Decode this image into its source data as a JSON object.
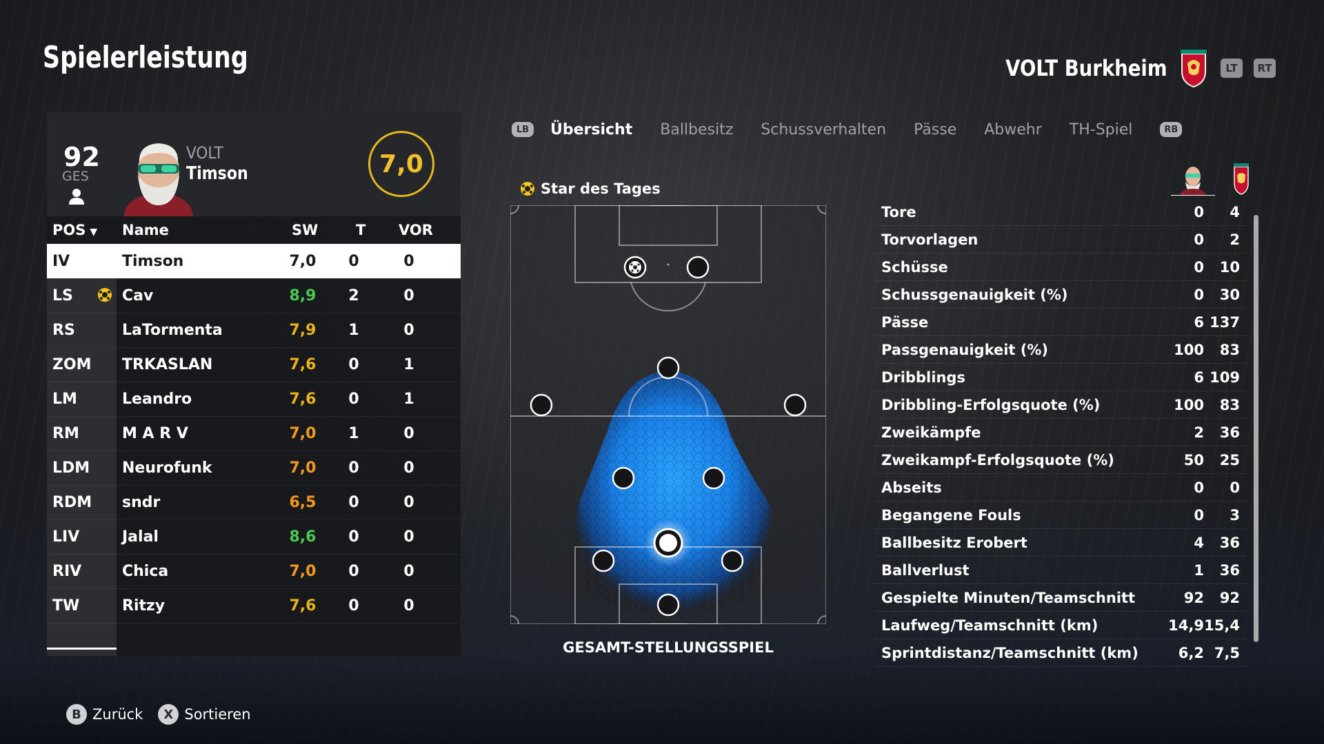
{
  "page_title": "Spielerleistung",
  "team_header": {
    "name": "VOLT Burkheim",
    "lt_label": "LT",
    "rt_label": "RT"
  },
  "player_card": {
    "overall": "92",
    "overall_label": "GES",
    "team": "VOLT",
    "name": "Timson",
    "rating": "7,0"
  },
  "table": {
    "headers": {
      "pos": "POS",
      "name": "Name",
      "sw": "SW",
      "t": "T",
      "vor": "VOR"
    },
    "rows": [
      {
        "pos": "IV",
        "name": "Timson",
        "sw": "7,0",
        "t": "0",
        "vor": "0"
      },
      {
        "pos": "LS",
        "name": "Cav",
        "sw": "8,9",
        "t": "2",
        "vor": "0"
      },
      {
        "pos": "RS",
        "name": "LaTormenta",
        "sw": "7,9",
        "t": "1",
        "vor": "0"
      },
      {
        "pos": "ZOM",
        "name": "TRKASLAN",
        "sw": "7,6",
        "t": "0",
        "vor": "1"
      },
      {
        "pos": "LM",
        "name": "Leandro",
        "sw": "7,6",
        "t": "0",
        "vor": "1"
      },
      {
        "pos": "RM",
        "name": "M A R V",
        "sw": "7,0",
        "t": "1",
        "vor": "0"
      },
      {
        "pos": "LDM",
        "name": "Neurofunk",
        "sw": "7,0",
        "t": "0",
        "vor": "0"
      },
      {
        "pos": "RDM",
        "name": "sndr",
        "sw": "6,5",
        "t": "0",
        "vor": "0"
      },
      {
        "pos": "LIV",
        "name": "Jalal",
        "sw": "8,6",
        "t": "0",
        "vor": "0"
      },
      {
        "pos": "RIV",
        "name": "Chica",
        "sw": "7,0",
        "t": "0",
        "vor": "0"
      },
      {
        "pos": "TW",
        "name": "Ritzy",
        "sw": "7,6",
        "t": "0",
        "vor": "0"
      }
    ]
  },
  "tabs": {
    "lb": "LB",
    "rb": "RB",
    "items": [
      "Übersicht",
      "Ballbesitz",
      "Schussverhalten",
      "Pässe",
      "Abwehr",
      "TH-Spiel"
    ],
    "active": "Übersicht"
  },
  "star_title": "Star des Tages",
  "pitch_label": "GESAMT-STELLUNGSSPIEL",
  "stats": [
    {
      "label": "Tore",
      "player": "0",
      "team": "4"
    },
    {
      "label": "Torvorlagen",
      "player": "0",
      "team": "2"
    },
    {
      "label": "Schüsse",
      "player": "0",
      "team": "10"
    },
    {
      "label": "Schussgenauigkeit (%)",
      "player": "0",
      "team": "30"
    },
    {
      "label": "Pässe",
      "player": "6",
      "team": "137"
    },
    {
      "label": "Passgenauigkeit (%)",
      "player": "100",
      "team": "83"
    },
    {
      "label": "Dribblings",
      "player": "6",
      "team": "109"
    },
    {
      "label": "Dribbling-Erfolgsquote (%)",
      "player": "100",
      "team": "83"
    },
    {
      "label": "Zweikämpfe",
      "player": "2",
      "team": "36"
    },
    {
      "label": "Zweikampf-Erfolgsquote (%)",
      "player": "50",
      "team": "25"
    },
    {
      "label": "Abseits",
      "player": "0",
      "team": "0"
    },
    {
      "label": "Begangene Fouls",
      "player": "0",
      "team": "3"
    },
    {
      "label": "Ballbesitz Erobert",
      "player": "4",
      "team": "36"
    },
    {
      "label": "Ballverlust",
      "player": "1",
      "team": "36"
    },
    {
      "label": "Gespielte Minuten/Teamschnitt",
      "player": "92",
      "team": "92"
    },
    {
      "label": "Laufweg/Teamschnitt (km)",
      "player": "14,9",
      "team": "15,4"
    },
    {
      "label": "Sprintdistanz/Teamschnitt (km)",
      "player": "6,2",
      "team": "7,5"
    }
  ],
  "footer": {
    "back_key": "B",
    "back_label": "Zurück",
    "sort_key": "X",
    "sort_label": "Sortieren"
  },
  "colors": {
    "accent_gold": "#e8b91c",
    "rating_green": "#49c94d",
    "rating_orange": "#f39a1a",
    "heatmap_blue": "#1e90ff"
  }
}
